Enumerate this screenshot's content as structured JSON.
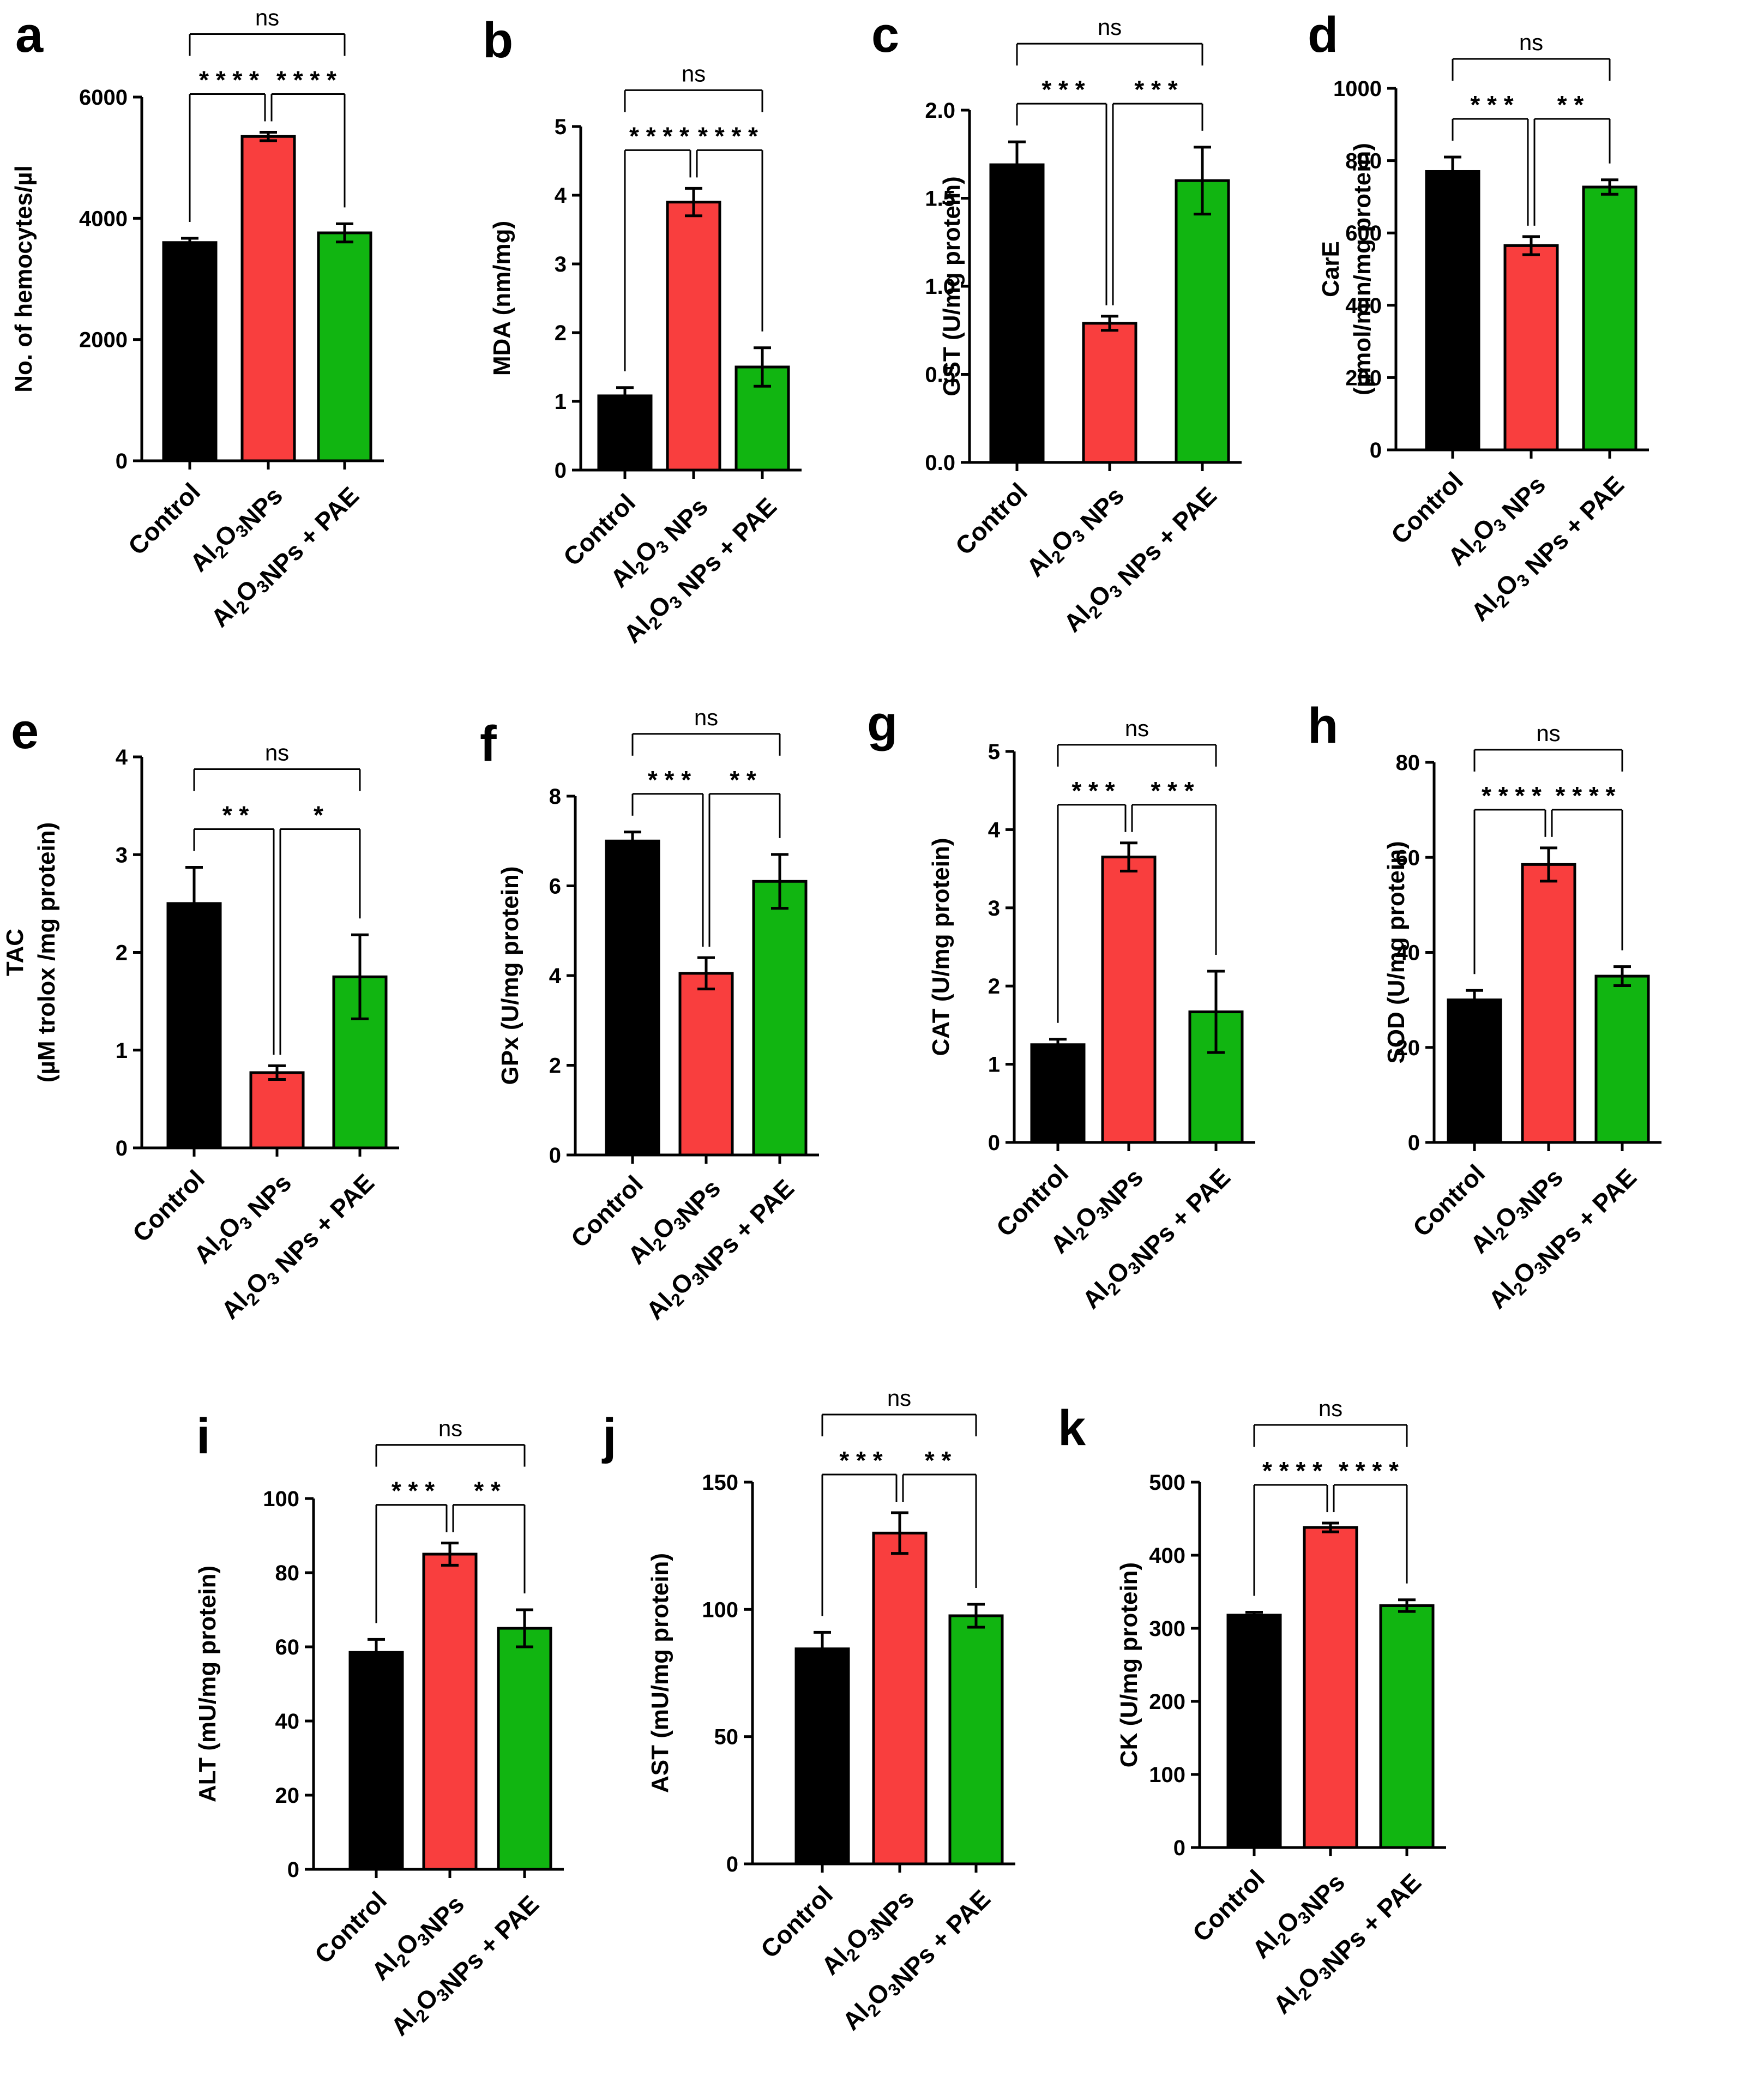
{
  "colors": {
    "control": "#000000",
    "np": "#f93e3e",
    "np_pae": "#11b511",
    "axis": "#000000"
  },
  "chart_data": [
    {
      "panel": "a",
      "type": "bar",
      "categories": [
        "Control",
        "Al2O3NPs",
        "Al2O3NPs + PAE"
      ],
      "ylabel": [
        "No. of hemocytes/µl"
      ],
      "ylim": [
        0,
        6000
      ],
      "yticks": [
        0,
        2000,
        4000,
        6000
      ],
      "values": [
        3600,
        5350,
        3760
      ],
      "errors": [
        70,
        70,
        150
      ],
      "sig": {
        "c_np": "* * * *",
        "np_pae": "* * * *",
        "c_pae": "ns"
      }
    },
    {
      "panel": "b",
      "type": "bar",
      "categories": [
        "Control",
        "Al2O3 NPs",
        "Al2O3 NPs + PAE"
      ],
      "ylabel": [
        "MDA (nm/mg)"
      ],
      "ylim": [
        0,
        5
      ],
      "yticks": [
        0,
        1,
        2,
        3,
        4,
        5
      ],
      "values": [
        1.08,
        3.9,
        1.5
      ],
      "errors": [
        0.12,
        0.2,
        0.28
      ],
      "sig": {
        "c_np": "* * * *",
        "np_pae": "* * * *",
        "c_pae": "ns"
      }
    },
    {
      "panel": "c",
      "type": "bar",
      "categories": [
        "Control",
        "Al2O3 NPs",
        "Al2O3 NPs + PAE"
      ],
      "ylabel": [
        "GST (U/mg protein)"
      ],
      "ylim": [
        0,
        2.0
      ],
      "yticks": [
        0,
        0.5,
        1.0,
        1.5,
        2.0
      ],
      "tick_decimals": 1,
      "values": [
        1.69,
        0.79,
        1.6
      ],
      "errors": [
        0.13,
        0.04,
        0.19
      ],
      "sig": {
        "c_np": "* * *",
        "np_pae": "* * *",
        "c_pae": "ns"
      }
    },
    {
      "panel": "d",
      "type": "bar",
      "categories": [
        "Control",
        "Al2O3 NPs",
        "Al2O3 NPs + PAE"
      ],
      "ylabel": [
        "CarE",
        "(µmol/min/mg protein)"
      ],
      "ylim": [
        0,
        1000
      ],
      "yticks": [
        0,
        200,
        400,
        600,
        800,
        1000
      ],
      "values": [
        770,
        565,
        727
      ],
      "errors": [
        40,
        25,
        20
      ],
      "sig": {
        "c_np": "* * *",
        "np_pae": "* *",
        "c_pae": "ns"
      }
    },
    {
      "panel": "e",
      "type": "bar",
      "categories": [
        "Control",
        "Al2O3 NPs",
        "Al2O3 NPs + PAE"
      ],
      "ylabel": [
        "TAC",
        "(µM trolox /mg protein)"
      ],
      "ylim": [
        0,
        4
      ],
      "yticks": [
        0,
        1,
        2,
        3,
        4
      ],
      "values": [
        2.5,
        0.77,
        1.75
      ],
      "errors": [
        0.37,
        0.07,
        0.43
      ],
      "sig": {
        "c_np": "* *",
        "np_pae": "*",
        "c_pae": "ns"
      }
    },
    {
      "panel": "f",
      "type": "bar",
      "categories": [
        "Control",
        "Al2O3NPs",
        "Al2O3NPs + PAE"
      ],
      "ylabel": [
        "GPx (U/mg protein)"
      ],
      "ylim": [
        0,
        8
      ],
      "yticks": [
        0,
        2,
        4,
        6,
        8
      ],
      "values": [
        7.0,
        4.05,
        6.1
      ],
      "errors": [
        0.2,
        0.35,
        0.6
      ],
      "sig": {
        "c_np": "* * *",
        "np_pae": "* *",
        "c_pae": "ns"
      }
    },
    {
      "panel": "g",
      "type": "bar",
      "categories": [
        "Control",
        "Al2O3NPs",
        "Al2O3NPs + PAE"
      ],
      "ylabel": [
        "CAT (U/mg protein)"
      ],
      "ylim": [
        0,
        5
      ],
      "yticks": [
        0,
        1,
        2,
        3,
        4,
        5
      ],
      "values": [
        1.25,
        3.65,
        1.67
      ],
      "errors": [
        0.07,
        0.18,
        0.52
      ],
      "sig": {
        "c_np": "* * *",
        "np_pae": "* * *",
        "c_pae": "ns"
      }
    },
    {
      "panel": "h",
      "type": "bar",
      "categories": [
        "Control",
        "Al2O3NPs",
        "Al2O3NPs + PAE"
      ],
      "ylabel": [
        "SOD (U/mg protein)"
      ],
      "ylim": [
        0,
        80
      ],
      "yticks": [
        0,
        20,
        40,
        60,
        80
      ],
      "values": [
        30,
        58.5,
        35
      ],
      "errors": [
        2,
        3.5,
        2
      ],
      "sig": {
        "c_np": "* * * *",
        "np_pae": "* * * *",
        "c_pae": "ns"
      }
    },
    {
      "panel": "i",
      "type": "bar",
      "categories": [
        "Control",
        "Al2O3NPs",
        "Al2O3NPs + PAE"
      ],
      "ylabel": [
        "ALT (mU/mg protein)"
      ],
      "ylim": [
        0,
        100
      ],
      "yticks": [
        0,
        20,
        40,
        60,
        80,
        100
      ],
      "values": [
        58.5,
        85,
        65
      ],
      "errors": [
        3.5,
        3,
        5
      ],
      "sig": {
        "c_np": "* * *",
        "np_pae": "* *",
        "c_pae": "ns"
      }
    },
    {
      "panel": "j",
      "type": "bar",
      "categories": [
        "Control",
        "Al2O3NPs",
        "Al2O3NPs + PAE"
      ],
      "ylabel": [
        "AST (mU/mg protein)"
      ],
      "ylim": [
        0,
        150
      ],
      "yticks": [
        0,
        50,
        100,
        150
      ],
      "values": [
        84.5,
        130,
        97.5
      ],
      "errors": [
        6.5,
        8,
        4.5
      ],
      "sig": {
        "c_np": "* * *",
        "np_pae": "* *",
        "c_pae": "ns"
      }
    },
    {
      "panel": "k",
      "type": "bar",
      "categories": [
        "Control",
        "Al2O3NPs",
        "Al2O3NPs + PAE"
      ],
      "ylabel": [
        "CK (U/mg protein)"
      ],
      "ylim": [
        0,
        500
      ],
      "yticks": [
        0,
        100,
        200,
        300,
        400,
        500
      ],
      "values": [
        318,
        438,
        331
      ],
      "errors": [
        4,
        6,
        8
      ],
      "sig": {
        "c_np": "* * * *",
        "np_pae": "* * * *",
        "c_pae": "ns"
      }
    }
  ]
}
